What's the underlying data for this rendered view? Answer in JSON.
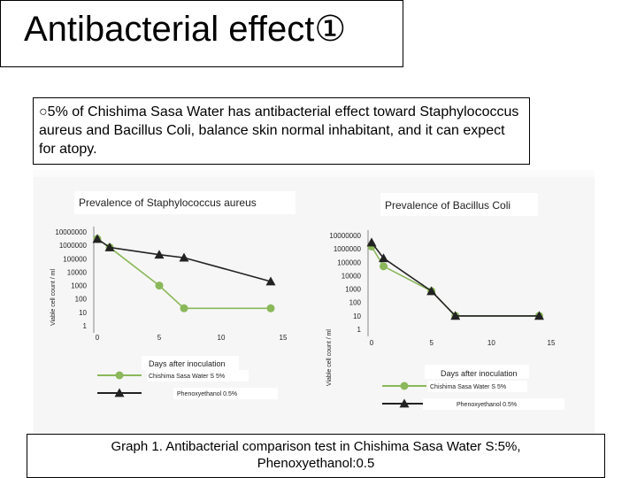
{
  "title": "Antibacterial effect①",
  "description": "○5% of Chishima Sasa Water has antibacterial effect toward Staphylococcus aureus and Bacillus Coli, balance skin normal inhabitant, and it can expect for atopy.",
  "caption_line1": "Graph 1. Antibacterial comparison test in Chishima Sasa Water S:5%,",
  "caption_line2": "Phenoxyethanol:0.5",
  "colors": {
    "sasa": "#8ab85a",
    "phenoxy": "#222222"
  },
  "chart_data": [
    {
      "type": "line",
      "title": "Prevalence of Staphylococcus aureus",
      "xlabel": "Days after inoculation",
      "ylabel": "Viable cell count / ml",
      "x_ticks": [
        0,
        5,
        10,
        15
      ],
      "y_ticks": [
        "10000000",
        "1000000",
        "100000",
        "10000",
        "1000",
        "100",
        "10",
        "1"
      ],
      "y_scale": "log",
      "xlim": [
        0,
        15
      ],
      "ylim": [
        1,
        10000000
      ],
      "series": [
        {
          "name": "Chishima Sasa Water S 5%",
          "color": "#8ab85a",
          "marker": "circle",
          "x": [
            0,
            1,
            5,
            7,
            14
          ],
          "y": [
            3000000,
            700000,
            1000,
            20,
            20
          ]
        },
        {
          "name": "Phenoxyethanol 0.5%",
          "color": "#222222",
          "marker": "triangle",
          "x": [
            0,
            1,
            5,
            7,
            14
          ],
          "y": [
            3000000,
            700000,
            200000,
            120000,
            2000
          ]
        }
      ]
    },
    {
      "type": "line",
      "title": "Prevalence of Bacillus Coli",
      "xlabel": "Days after inoculation",
      "ylabel": "Viable cell count / ml",
      "x_ticks": [
        0,
        5,
        10,
        15
      ],
      "y_ticks": [
        "10000000",
        "1000000",
        "100000",
        "10000",
        "1000",
        "100",
        "10",
        "1"
      ],
      "y_scale": "log",
      "xlim": [
        0,
        15
      ],
      "ylim": [
        1,
        10000000
      ],
      "series": [
        {
          "name": "Chishima Sasa Water S 5%",
          "color": "#8ab85a",
          "marker": "circle",
          "x": [
            0,
            1,
            5,
            7,
            14
          ],
          "y": [
            1500000,
            50000,
            700,
            10,
            10
          ]
        },
        {
          "name": "Phenoxyethanol 0.5%",
          "color": "#222222",
          "marker": "triangle",
          "x": [
            0,
            1,
            5,
            7,
            14
          ],
          "y": [
            3000000,
            200000,
            700,
            10,
            10
          ]
        }
      ]
    }
  ]
}
